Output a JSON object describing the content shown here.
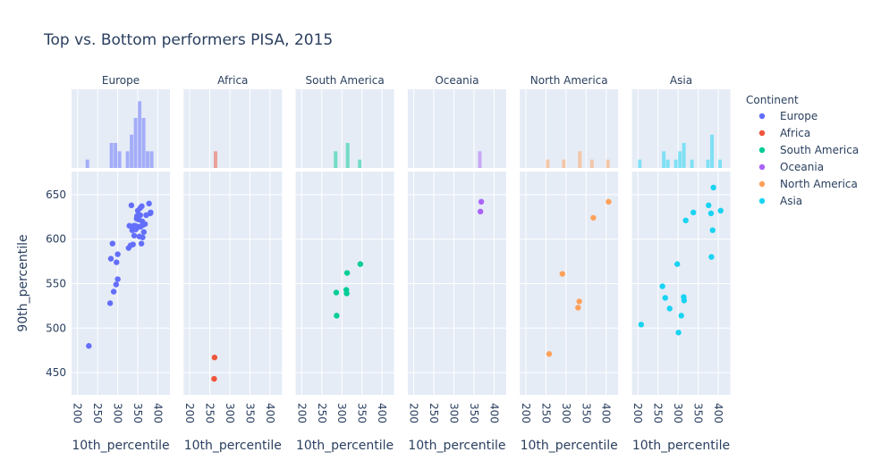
{
  "chart_data": {
    "type": "scatter",
    "title": "Top vs. Bottom performers PISA, 2015",
    "xlabel": "10th_percentile",
    "ylabel": "90th_percentile",
    "legend_title": "Continent",
    "legend_position": "right",
    "grid": true,
    "xlim": [
      185,
      430
    ],
    "ylim": [
      425,
      676
    ],
    "x_ticks": [
      200,
      250,
      300,
      350,
      400
    ],
    "y_ticks": [
      450,
      500,
      550,
      600,
      650
    ],
    "marginal": "histogram",
    "facets": [
      {
        "name": "Europe",
        "color": "#636efa",
        "points": [
          [
            228,
            480
          ],
          [
            281,
            528
          ],
          [
            283,
            578
          ],
          [
            287,
            595
          ],
          [
            290,
            541
          ],
          [
            296,
            549
          ],
          [
            297,
            574
          ],
          [
            300,
            555
          ],
          [
            300,
            583
          ],
          [
            327,
            590
          ],
          [
            329,
            615
          ],
          [
            332,
            593
          ],
          [
            334,
            638
          ],
          [
            336,
            610
          ],
          [
            338,
            594
          ],
          [
            340,
            615
          ],
          [
            341,
            604
          ],
          [
            344,
            615
          ],
          [
            345,
            611
          ],
          [
            347,
            623
          ],
          [
            348,
            626
          ],
          [
            350,
            632
          ],
          [
            352,
            622
          ],
          [
            352,
            614
          ],
          [
            354,
            603
          ],
          [
            356,
            635
          ],
          [
            356,
            627
          ],
          [
            357,
            614
          ],
          [
            359,
            595
          ],
          [
            360,
            637
          ],
          [
            361,
            620
          ],
          [
            362,
            602
          ],
          [
            363,
            616
          ],
          [
            365,
            608
          ],
          [
            368,
            617
          ],
          [
            371,
            627
          ],
          [
            378,
            640
          ],
          [
            381,
            629
          ],
          [
            382,
            630
          ]
        ]
      },
      {
        "name": "Africa",
        "color": "#ef553b",
        "points": [
          [
            262,
            467
          ],
          [
            261,
            443
          ]
        ]
      },
      {
        "name": "South America",
        "color": "#00cc96",
        "points": [
          [
            287,
            514
          ],
          [
            286,
            540
          ],
          [
            311,
            543
          ],
          [
            313,
            562
          ],
          [
            312,
            539
          ],
          [
            346,
            572
          ]
        ]
      },
      {
        "name": "Oceania",
        "color": "#ab63fa",
        "points": [
          [
            368,
            642
          ],
          [
            366,
            631
          ]
        ]
      },
      {
        "name": "North America",
        "color": "#ffa15a",
        "points": [
          [
            258,
            471
          ],
          [
            291,
            561
          ],
          [
            330,
            523
          ],
          [
            333,
            530
          ],
          [
            368,
            624
          ],
          [
            406,
            642
          ]
        ]
      },
      {
        "name": "Asia",
        "color": "#19d3f3",
        "points": [
          [
            208,
            504
          ],
          [
            261,
            547
          ],
          [
            268,
            534
          ],
          [
            279,
            522
          ],
          [
            298,
            572
          ],
          [
            301,
            495
          ],
          [
            308,
            514
          ],
          [
            314,
            535
          ],
          [
            315,
            531
          ],
          [
            319,
            621
          ],
          [
            338,
            630
          ],
          [
            376,
            638
          ],
          [
            382,
            629
          ],
          [
            383,
            580
          ],
          [
            386,
            610
          ],
          [
            388,
            658
          ],
          [
            406,
            632
          ]
        ]
      }
    ]
  }
}
